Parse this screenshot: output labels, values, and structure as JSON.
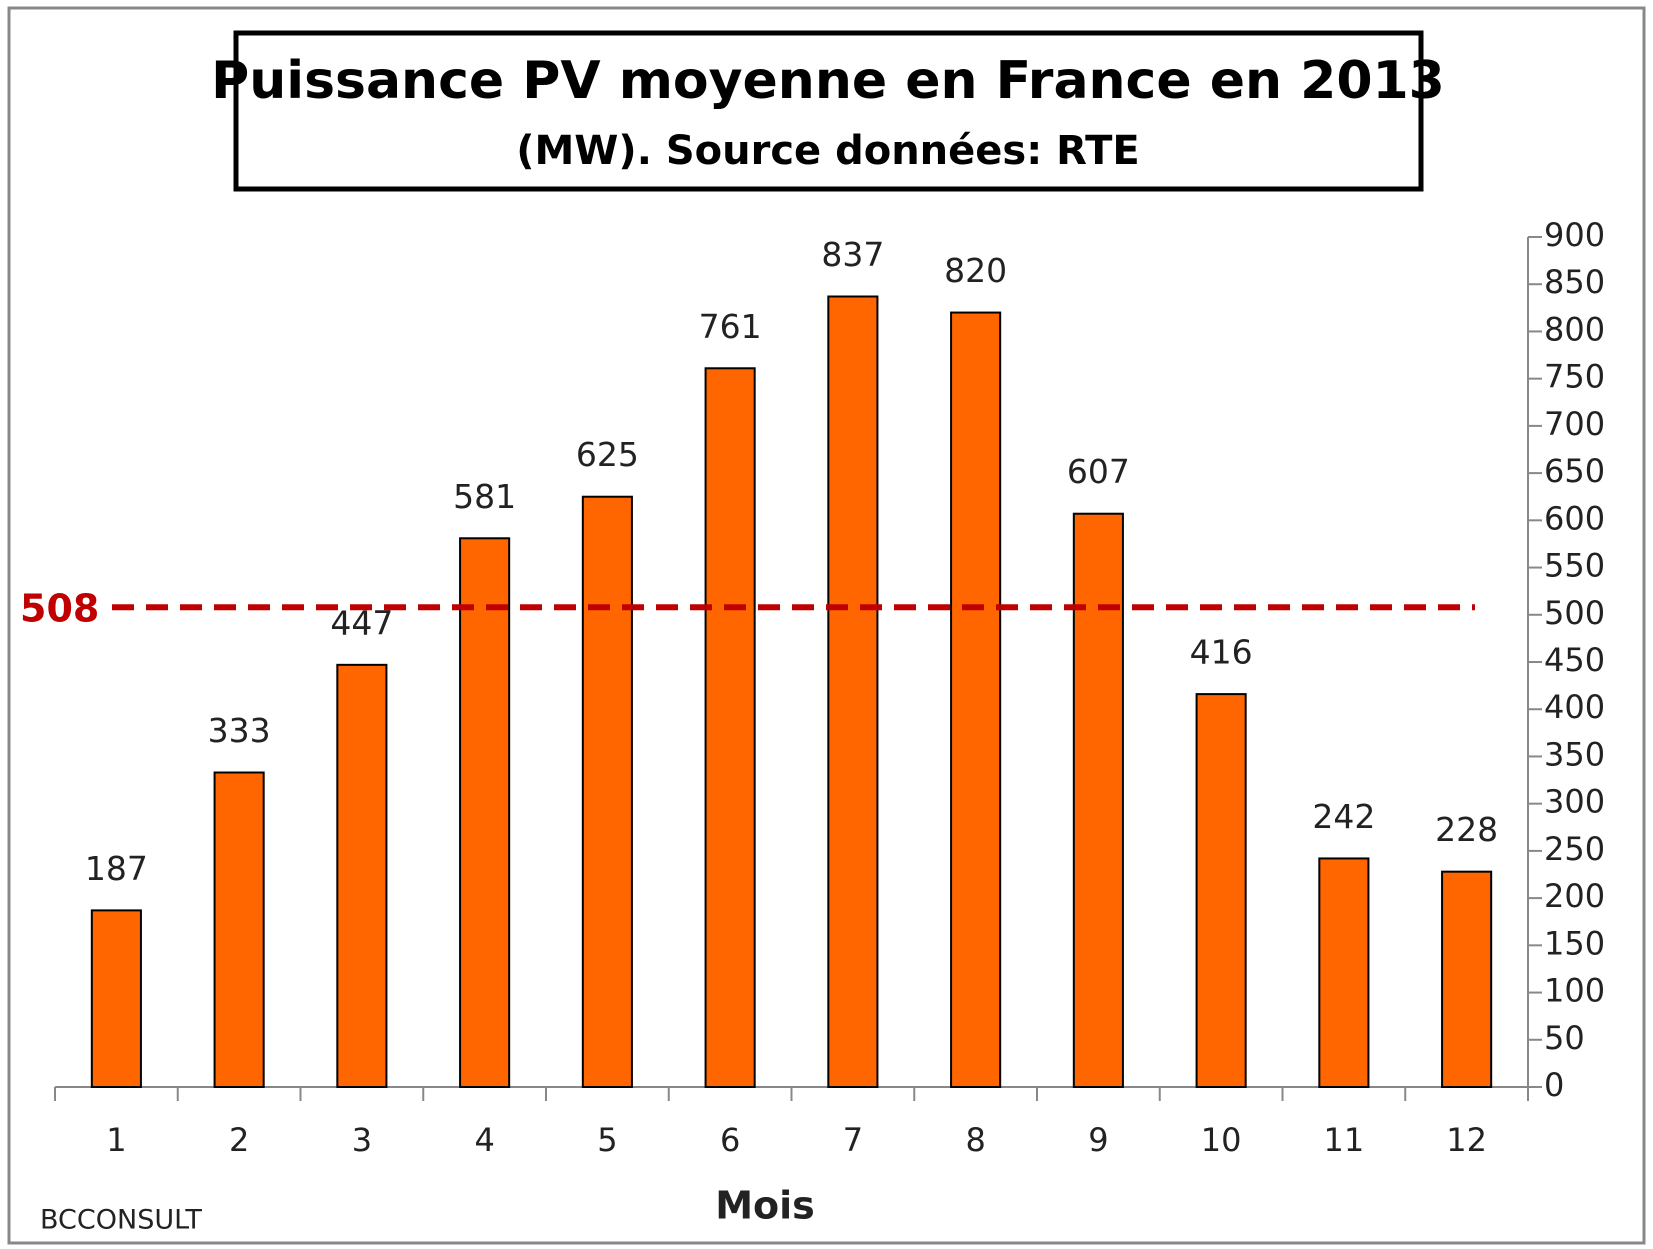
{
  "chart_data": {
    "type": "bar",
    "title": "Puissance PV moyenne en France en 2013",
    "subtitle": "(MW). Source données: RTE",
    "x_label": "Mois",
    "source": "BCCONSULT",
    "categories": [
      "1",
      "2",
      "3",
      "4",
      "5",
      "6",
      "7",
      "8",
      "9",
      "10",
      "11",
      "12"
    ],
    "values": [
      187,
      333,
      447,
      581,
      625,
      761,
      837,
      820,
      607,
      416,
      242,
      228
    ],
    "color": "#ff6600",
    "average": 508,
    "average_color": "#c00000",
    "ylim": [
      0,
      900
    ],
    "yticks": [
      0,
      50,
      100,
      150,
      200,
      250,
      300,
      350,
      400,
      450,
      500,
      550,
      600,
      650,
      700,
      750,
      800,
      850,
      900
    ],
    "y_axis_side": "right",
    "grid": false
  }
}
